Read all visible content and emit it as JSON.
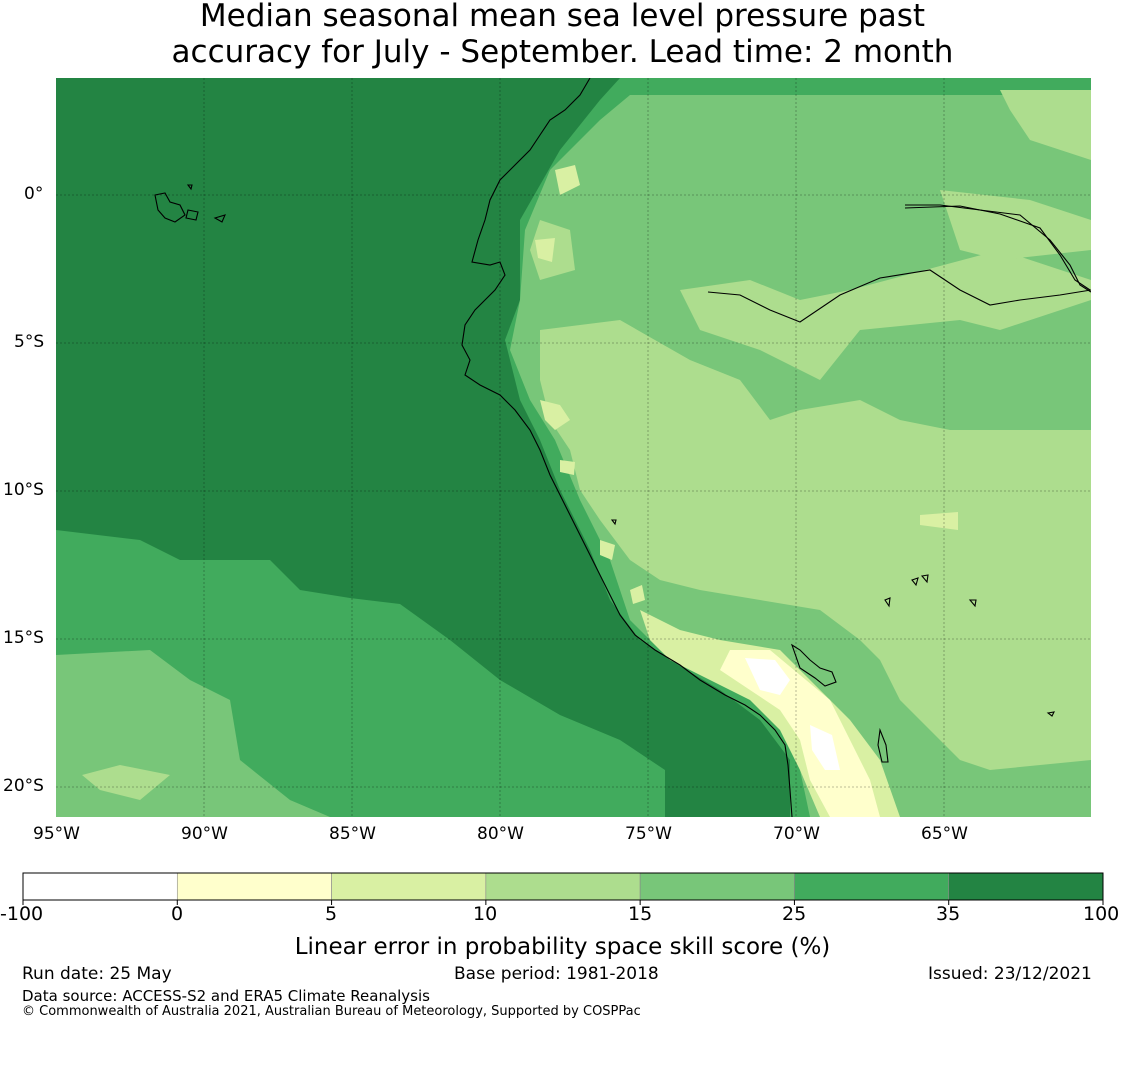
{
  "title": {
    "line1": "Median seasonal mean sea level pressure past",
    "line2": "accuracy for July - September. Lead time: 2 month"
  },
  "map": {
    "lon_ticks": [
      "95°W",
      "90°W",
      "85°W",
      "80°W",
      "75°W",
      "70°W",
      "65°W"
    ],
    "lat_ticks": [
      "0°",
      "5°S",
      "10°S",
      "15°S",
      "20°S"
    ],
    "extent": {
      "lon_min": -95,
      "lon_max": -60,
      "lat_min": -21,
      "lat_max": 4
    }
  },
  "colorbar": {
    "label": "Linear error in probability space skill score (%)",
    "ticks": [
      "-100",
      "0",
      "5",
      "10",
      "15",
      "25",
      "35",
      "100"
    ],
    "colors": [
      "#ffffff",
      "#ffffcc",
      "#d9f0a3",
      "#addd8e",
      "#78c679",
      "#41ab5d",
      "#238443"
    ]
  },
  "footer": {
    "run_date": "Run date: 25 May",
    "base_period": "Base period: 1981-2018",
    "issued": "Issued: 23/12/2021",
    "data_source": "Data source: ACCESS-S2 and ERA5 Climate Reanalysis",
    "copyright": "© Commonwealth of Australia 2021, Australian Bureau of Meteorology, Supported by COSPPac"
  }
}
